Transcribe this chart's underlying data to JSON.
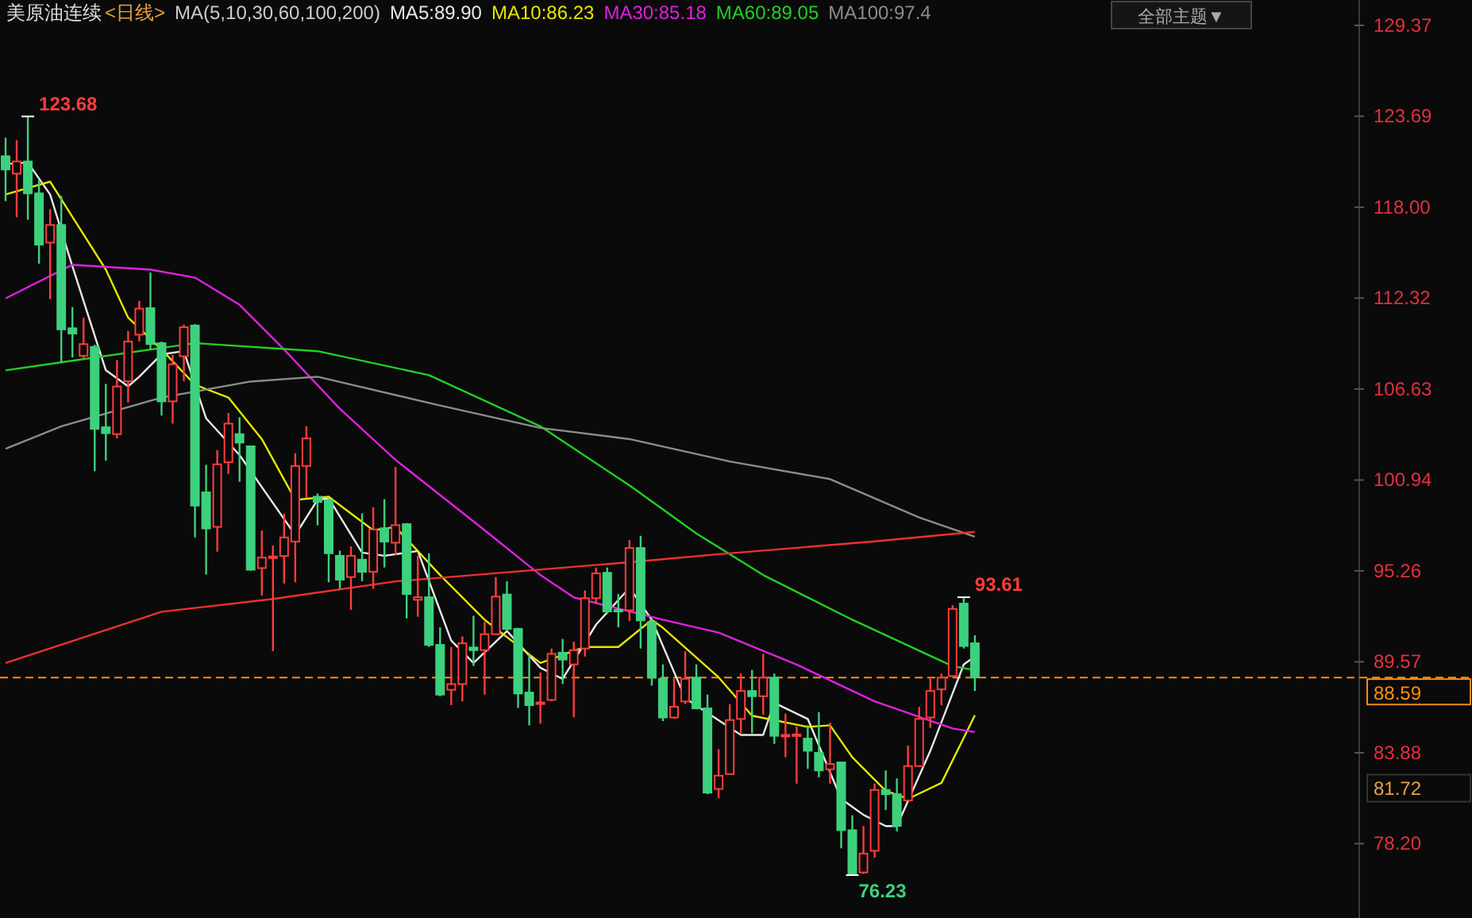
{
  "chart_data": {
    "type": "candlestick",
    "title": "美原油连续",
    "subtitle": "<日线>",
    "legend_title": "MA(5,10,30,60,100,200)",
    "legend": "top",
    "grid": false,
    "categories": [
      null,
      null,
      null,
      null,
      null,
      null,
      null,
      null,
      null,
      null,
      null,
      null,
      null,
      null,
      null,
      null,
      null,
      null,
      null,
      null,
      null,
      null,
      null,
      null,
      null,
      null,
      null,
      null,
      null,
      null,
      null,
      null,
      null,
      null,
      null,
      null,
      null,
      null,
      null,
      null,
      null,
      null,
      null,
      null,
      null,
      null,
      null,
      null,
      null,
      null,
      null,
      null,
      null,
      null,
      null,
      null,
      null,
      null,
      null,
      null,
      null,
      null,
      null,
      null,
      null,
      null,
      null,
      null,
      null,
      null,
      null,
      null,
      null,
      null,
      null,
      null,
      null,
      null,
      null,
      null,
      null,
      null,
      null,
      null,
      null,
      null,
      null,
      null,
      null,
      null,
      null,
      null,
      null,
      null,
      null,
      null,
      null,
      null,
      null,
      null,
      null,
      null,
      null,
      null,
      null,
      null,
      null,
      null,
      null,
      null,
      null,
      null,
      null,
      null,
      null,
      null,
      null,
      null,
      null,
      null,
      null,
      null
    ],
    "ohlc": [
      [
        121.19,
        122.35,
        118.38,
        120.36
      ],
      [
        120.1,
        122.19,
        117.38,
        120.86
      ],
      [
        120.86,
        123.68,
        117.22,
        118.87
      ],
      [
        118.87,
        119.7,
        114.47,
        115.66
      ],
      [
        115.79,
        117.88,
        112.25,
        116.89
      ],
      [
        116.89,
        118.71,
        108.28,
        110.36
      ],
      [
        110.43,
        111.75,
        108.61,
        110.1
      ],
      [
        108.71,
        111.09,
        108.54,
        109.44
      ],
      [
        109.27,
        109.4,
        101.49,
        104.14
      ],
      [
        104.24,
        106.95,
        102.15,
        103.87
      ],
      [
        103.81,
        108.44,
        103.54,
        106.79
      ],
      [
        107.12,
        110.26,
        105.79,
        109.6
      ],
      [
        110.03,
        112.15,
        109.6,
        111.66
      ],
      [
        111.69,
        113.91,
        109.11,
        109.44
      ],
      [
        109.5,
        109.6,
        104.97,
        105.86
      ],
      [
        105.86,
        108.77,
        104.47,
        108.18
      ],
      [
        108.68,
        110.66,
        107.12,
        110.5
      ],
      [
        110.6,
        110.7,
        97.35,
        99.34
      ],
      [
        100.17,
        101.89,
        95.03,
        97.91
      ],
      [
        98.01,
        102.81,
        96.46,
        101.92
      ],
      [
        102.05,
        105.13,
        101.32,
        104.47
      ],
      [
        103.81,
        104.87,
        100.83,
        103.28
      ],
      [
        103.05,
        103.1,
        95.27,
        95.33
      ],
      [
        95.43,
        97.78,
        93.71,
        96.09
      ],
      [
        96.13,
        96.85,
        90.24,
        96.16
      ],
      [
        96.19,
        98.84,
        94.47,
        97.35
      ],
      [
        97.09,
        102.62,
        94.54,
        101.82
      ],
      [
        101.82,
        104.3,
        99.83,
        103.54
      ],
      [
        99.9,
        100.1,
        98.11,
        99.57
      ],
      [
        99.67,
        99.8,
        94.54,
        96.36
      ],
      [
        96.2,
        96.53,
        94.14,
        94.71
      ],
      [
        94.87,
        96.79,
        92.82,
        96.2
      ],
      [
        95.96,
        98.85,
        94.61,
        95.2
      ],
      [
        95.2,
        99.24,
        94.14,
        97.85
      ],
      [
        97.92,
        99.74,
        95.47,
        97.09
      ],
      [
        97.02,
        101.76,
        96.26,
        98.12
      ],
      [
        98.18,
        98.25,
        92.29,
        93.81
      ],
      [
        93.45,
        96.2,
        92.39,
        93.61
      ],
      [
        93.61,
        96.36,
        90.5,
        90.63
      ],
      [
        90.63,
        91.73,
        87.42,
        87.52
      ],
      [
        87.82,
        90.5,
        86.86,
        88.18
      ],
      [
        88.18,
        91.16,
        87.09,
        90.73
      ],
      [
        90.47,
        92.45,
        89.31,
        90.3
      ],
      [
        90.3,
        92.06,
        87.52,
        91.3
      ],
      [
        91.3,
        94.87,
        91.23,
        93.65
      ],
      [
        93.78,
        94.61,
        91.5,
        91.63
      ],
      [
        91.63,
        91.7,
        86.69,
        87.59
      ],
      [
        87.65,
        90.07,
        85.6,
        86.86
      ],
      [
        86.93,
        88.91,
        85.7,
        87.03
      ],
      [
        87.19,
        90.4,
        87.1,
        90.07
      ],
      [
        90.14,
        91.0,
        88.18,
        89.71
      ],
      [
        89.41,
        90.83,
        86.1,
        90.3
      ],
      [
        90.4,
        94.04,
        89.9,
        93.55
      ],
      [
        93.55,
        95.47,
        93.22,
        95.1
      ],
      [
        95.14,
        95.47,
        92.55,
        92.72
      ],
      [
        92.82,
        93.81,
        91.73,
        92.75
      ],
      [
        92.79,
        97.19,
        92.12,
        96.69
      ],
      [
        96.69,
        97.45,
        90.4,
        92.16
      ],
      [
        92.06,
        92.22,
        88.08,
        88.58
      ],
      [
        88.51,
        89.41,
        85.86,
        86.09
      ],
      [
        86.09,
        88.51,
        86.0,
        86.76
      ],
      [
        87.09,
        90.23,
        86.92,
        88.51
      ],
      [
        88.58,
        89.41,
        86.6,
        86.66
      ],
      [
        86.66,
        87.52,
        81.29,
        81.39
      ],
      [
        81.62,
        84.11,
        81.03,
        82.45
      ],
      [
        82.55,
        86.92,
        82.5,
        85.93
      ],
      [
        86.0,
        88.84,
        85.1,
        87.75
      ],
      [
        87.75,
        89.07,
        85.1,
        87.42
      ],
      [
        87.42,
        90.07,
        86.26,
        88.58
      ],
      [
        88.58,
        88.84,
        84.44,
        84.94
      ],
      [
        84.94,
        86.33,
        83.61,
        85.0
      ],
      [
        85.0,
        85.53,
        81.95,
        85.03
      ],
      [
        84.77,
        85.6,
        82.88,
        84.01
      ],
      [
        83.88,
        86.42,
        82.35,
        82.78
      ],
      [
        82.85,
        85.76,
        81.95,
        83.18
      ],
      [
        83.28,
        83.3,
        77.91,
        79.04
      ],
      [
        79.04,
        79.97,
        76.23,
        76.3
      ],
      [
        76.4,
        79.31,
        76.3,
        77.58
      ],
      [
        77.75,
        81.96,
        77.32,
        81.56
      ],
      [
        81.56,
        82.78,
        80.3,
        81.29
      ],
      [
        81.29,
        82.28,
        78.97,
        79.31
      ],
      [
        80.9,
        84.34,
        80.9,
        83.05
      ],
      [
        83.05,
        86.76,
        83.0,
        86.0
      ],
      [
        86.09,
        88.58,
        85.43,
        87.75
      ],
      [
        87.85,
        88.84,
        86.86,
        88.58
      ],
      [
        88.68,
        93.11,
        88.58,
        92.88
      ],
      [
        93.21,
        93.61,
        90.4,
        90.56
      ],
      [
        90.73,
        91.23,
        87.75,
        88.59
      ],
      null,
      null,
      null,
      null,
      null,
      null,
      null,
      null,
      null,
      null,
      null,
      null,
      null,
      null,
      null,
      null,
      null,
      null,
      null,
      null,
      null,
      null,
      null,
      null,
      null,
      null,
      null,
      null,
      null,
      null,
      null,
      null,
      null,
      null
    ],
    "colors": [
      "#3dd17e",
      "#ff3c3c",
      "#3dd17e",
      "#3dd17e",
      "#ff3c3c",
      "#3dd17e",
      "#3dd17e",
      "#ff3c3c",
      "#3dd17e",
      "#3dd17e",
      "#ff3c3c",
      "#ff3c3c",
      "#ff3c3c",
      "#3dd17e",
      "#3dd17e",
      "#ff3c3c",
      "#ff3c3c",
      "#3dd17e",
      "#3dd17e",
      "#ff3c3c",
      "#ff3c3c",
      "#3dd17e",
      "#3dd17e",
      "#ff3c3c",
      "#ff3c3c",
      "#ff3c3c",
      "#ff3c3c",
      "#ff3c3c",
      "#3dd17e",
      "#3dd17e",
      "#3dd17e",
      "#ff3c3c",
      "#3dd17e",
      "#ff3c3c",
      "#3dd17e",
      "#ff3c3c",
      "#3dd17e",
      "#ff3c3c",
      "#3dd17e",
      "#3dd17e",
      "#ff3c3c",
      "#ff3c3c",
      "#3dd17e",
      "#ff3c3c",
      "#ff3c3c",
      "#3dd17e",
      "#3dd17e",
      "#3dd17e",
      "#ff3c3c",
      "#ff3c3c",
      "#3dd17e",
      "#ff3c3c",
      "#ff3c3c",
      "#ff3c3c",
      "#3dd17e",
      "#3dd17e",
      "#ff3c3c",
      "#3dd17e",
      "#3dd17e",
      "#3dd17e",
      "#ff3c3c",
      "#ff3c3c",
      "#3dd17e",
      "#3dd17e",
      "#ff3c3c",
      "#ff3c3c",
      "#ff3c3c",
      "#3dd17e",
      "#ff3c3c",
      "#3dd17e",
      "#ff3c3c",
      "#ff3c3c",
      "#3dd17e",
      "#3dd17e",
      "#ff3c3c",
      "#3dd17e",
      "#3dd17e",
      "#ff3c3c",
      "#ff3c3c",
      "#3dd17e",
      "#3dd17e",
      "#ff3c3c",
      "#ff3c3c",
      "#ff3c3c",
      "#ff3c3c",
      "#ff3c3c",
      "#3dd17e",
      "#3dd17e",
      null,
      null,
      null,
      null,
      null,
      null,
      null,
      null,
      null,
      null,
      null,
      null,
      null,
      null,
      null,
      null,
      null,
      null,
      null,
      null,
      null,
      null,
      null,
      null,
      null,
      null,
      null,
      null,
      null,
      null,
      null,
      null,
      null,
      null
    ],
    "series": [
      {
        "type": "line",
        "name": "MA5:89.90",
        "color": "#e8e8e8",
        "values": [
          120.7,
          null,
          120.8,
          null,
          118.8,
          null,
          114.3,
          null,
          null,
          107.8,
          null,
          106.8,
          107.4,
          null,
          108.8,
          null,
          109.0,
          null,
          104.8,
          null,
          null,
          102.5,
          null,
          100.5,
          null,
          null,
          97.5,
          null,
          99.7,
          99.8,
          null,
          null,
          96.4,
          null,
          96.2,
          null,
          null,
          96.5,
          null,
          null,
          90.9,
          null,
          89.5,
          null,
          null,
          91.5,
          null,
          null,
          89.2,
          null,
          88.5,
          null,
          null,
          91.9,
          null,
          null,
          94.2,
          null,
          92.2,
          null,
          null,
          87.3,
          null,
          null,
          null,
          null,
          85.0,
          null,
          85.0,
          87.0,
          null,
          null,
          86.0,
          null,
          null,
          81.0,
          null,
          80.0,
          null,
          79.3,
          79.3,
          null,
          null,
          84.0,
          null,
          null,
          89.4,
          89.9,
          null,
          null,
          null,
          null,
          null,
          null,
          null,
          null,
          null,
          null,
          null,
          null,
          null,
          null,
          null,
          null,
          null,
          null,
          null,
          null,
          null,
          null,
          null,
          null,
          null,
          null,
          null,
          null,
          null,
          null,
          null,
          null,
          null,
          null
        ]
      },
      {
        "type": "line",
        "name": "MA10:86.23",
        "color": "#e6e600",
        "values": [
          118.8,
          null,
          null,
          null,
          119.6,
          null,
          117.4,
          null,
          null,
          114.1,
          null,
          111.1,
          null,
          null,
          109.1,
          null,
          null,
          106.9,
          null,
          null,
          106.1,
          null,
          null,
          103.5,
          null,
          null,
          99.7,
          null,
          null,
          99.9,
          null,
          null,
          null,
          97.8,
          null,
          98.0,
          null,
          null,
          null,
          95.0,
          null,
          null,
          null,
          92.2,
          null,
          null,
          null,
          null,
          89.5,
          null,
          null,
          null,
          90.5,
          null,
          null,
          90.5,
          null,
          null,
          92.2,
          91.7,
          null,
          null,
          null,
          null,
          88.6,
          null,
          null,
          86.2,
          null,
          null,
          null,
          null,
          85.5,
          null,
          85.6,
          null,
          83.6,
          null,
          null,
          81.5,
          null,
          81.0,
          null,
          null,
          82.0,
          null,
          null,
          86.23,
          null,
          null,
          null,
          null,
          null,
          null,
          null,
          null,
          null,
          null,
          null,
          null,
          null,
          null,
          null,
          null,
          null,
          null,
          null,
          null,
          null,
          null,
          null,
          null,
          null,
          null,
          null,
          null,
          null,
          null,
          null,
          null,
          null,
          null
        ]
      },
      {
        "type": "line",
        "name": "MA30:85.18",
        "color": "#e020e0",
        "values": [
          112.3,
          null,
          null,
          null,
          null,
          null,
          114.4,
          null,
          null,
          null,
          null,
          null,
          null,
          114.1,
          null,
          null,
          null,
          113.6,
          null,
          null,
          null,
          111.9,
          null,
          null,
          null,
          109.1,
          null,
          null,
          null,
          null,
          105.4,
          null,
          null,
          null,
          null,
          102.2,
          null,
          null,
          null,
          null,
          null,
          null,
          null,
          97.8,
          null,
          null,
          null,
          null,
          95.0,
          null,
          null,
          93.6,
          null,
          null,
          null,
          null,
          null,
          null,
          null,
          92.2,
          null,
          null,
          null,
          null,
          91.4,
          null,
          null,
          null,
          null,
          null,
          null,
          89.4,
          null,
          null,
          null,
          null,
          null,
          null,
          87.1,
          null,
          null,
          null,
          null,
          null,
          null,
          85.4,
          null,
          85.18,
          null,
          null,
          null,
          null,
          null,
          null,
          null,
          null,
          null,
          null,
          null,
          null,
          null,
          null,
          null,
          null,
          null,
          null,
          null,
          null,
          null,
          null,
          null,
          null,
          null,
          null,
          null,
          null,
          null,
          null,
          null,
          null,
          null,
          null
        ]
      },
      {
        "type": "line",
        "name": "MA60:89.05",
        "color": "#22d022",
        "values": [
          107.8,
          null,
          null,
          null,
          null,
          108.3,
          null,
          null,
          null,
          null,
          null,
          null,
          null,
          null,
          null,
          null,
          null,
          109.5,
          null,
          null,
          null,
          null,
          null,
          null,
          null,
          null,
          null,
          null,
          109.0,
          null,
          null,
          null,
          null,
          null,
          null,
          null,
          null,
          null,
          107.5,
          null,
          null,
          null,
          null,
          null,
          null,
          null,
          null,
          null,
          104.3,
          null,
          null,
          null,
          null,
          null,
          null,
          null,
          100.6,
          null,
          null,
          null,
          null,
          null,
          97.6,
          null,
          null,
          null,
          null,
          null,
          95.0,
          null,
          null,
          null,
          null,
          null,
          null,
          null,
          92.2,
          null,
          null,
          null,
          null,
          null,
          null,
          null,
          null,
          89.3,
          null,
          89.05,
          null,
          null,
          null,
          null,
          null,
          null,
          null,
          null,
          null,
          null,
          null,
          null,
          null,
          null,
          null,
          null,
          null,
          null,
          null,
          null,
          null,
          null,
          null,
          null,
          null,
          null,
          null,
          null,
          null,
          null,
          null,
          null,
          null,
          null
        ]
      },
      {
        "type": "line",
        "name": "MA100:97.4",
        "color": "#8c8c8c",
        "values": [
          102.9,
          null,
          null,
          null,
          null,
          104.3,
          null,
          null,
          null,
          null,
          null,
          null,
          null,
          null,
          106.1,
          null,
          null,
          null,
          null,
          null,
          null,
          null,
          107.1,
          null,
          null,
          null,
          null,
          null,
          107.4,
          null,
          null,
          null,
          null,
          null,
          null,
          null,
          null,
          null,
          null,
          105.6,
          null,
          null,
          null,
          null,
          null,
          null,
          null,
          null,
          104.2,
          null,
          null,
          null,
          null,
          null,
          null,
          null,
          103.5,
          null,
          null,
          null,
          null,
          null,
          null,
          null,
          null,
          102.1,
          null,
          null,
          null,
          null,
          null,
          null,
          null,
          null,
          101.0,
          null,
          null,
          null,
          null,
          null,
          null,
          null,
          98.6,
          null,
          null,
          null,
          null,
          97.4,
          null,
          null,
          null,
          null,
          null,
          null,
          null,
          null,
          null,
          null,
          null,
          null,
          null,
          null,
          null,
          null,
          null,
          null,
          null,
          null,
          null,
          null,
          null,
          null,
          null,
          null,
          null,
          null,
          null,
          null,
          null,
          null,
          null,
          null
        ]
      },
      {
        "type": "line",
        "color": "#f03030",
        "values": [
          89.5,
          null,
          null,
          null,
          null,
          null,
          null,
          null,
          null,
          null,
          null,
          null,
          null,
          null,
          92.7,
          null,
          null,
          null,
          null,
          null,
          null,
          null,
          null,
          null,
          93.5,
          null,
          null,
          null,
          null,
          null,
          null,
          null,
          null,
          null,
          null,
          94.6,
          null,
          null,
          null,
          null,
          null,
          null,
          95.0,
          null,
          null,
          null,
          null,
          null,
          null,
          null,
          null,
          null,
          null,
          null,
          null,
          null,
          95.8,
          null,
          null,
          null,
          null,
          null,
          null,
          null,
          96.3,
          null,
          null,
          null,
          null,
          null,
          null,
          96.7,
          null,
          null,
          null,
          null,
          null,
          null,
          97.1,
          null,
          null,
          null,
          null,
          null,
          null,
          null,
          null,
          97.7,
          null,
          null,
          null,
          null,
          null,
          null,
          null,
          null,
          null,
          null,
          null,
          null,
          null,
          null,
          null,
          null,
          null,
          null,
          null,
          null,
          null,
          null,
          null,
          null,
          null,
          null,
          null,
          null,
          null,
          null,
          null,
          null,
          null,
          null
        ]
      }
    ],
    "ylim": [
      73.55,
      130.96
    ],
    "yticks": [
      {
        "value": 78.2,
        "label": "78.20"
      },
      83.88,
      89.57,
      95.26,
      100.94,
      106.63,
      112.32,
      {
        "value": 118,
        "label": "118.00"
      },
      123.69,
      129.37
    ],
    "ref_lines": [
      {
        "axis": "y",
        "value": 88.59,
        "label": "88.59",
        "color": "#ff8c1a",
        "line_style": "dashed"
      }
    ],
    "annotations": [
      "123.68",
      "93.61",
      "76.23",
      "81.72",
      "全部主题▼"
    ]
  }
}
